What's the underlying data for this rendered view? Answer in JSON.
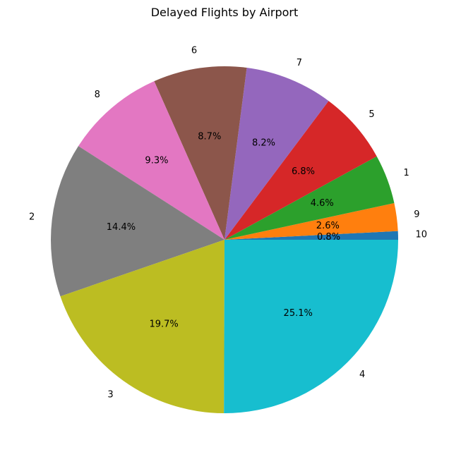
{
  "chart_data": {
    "type": "pie",
    "title": "Delayed Flights by Airport",
    "slices": [
      {
        "label": "10",
        "percent": 0.8,
        "value_label": "0.8%",
        "color": "#1f77b4"
      },
      {
        "label": "9",
        "percent": 2.6,
        "value_label": "2.6%",
        "color": "#ff7f0e"
      },
      {
        "label": "1",
        "percent": 4.6,
        "value_label": "4.6%",
        "color": "#2ca02c"
      },
      {
        "label": "5",
        "percent": 6.8,
        "value_label": "6.8%",
        "color": "#d62728"
      },
      {
        "label": "7",
        "percent": 8.2,
        "value_label": "8.2%",
        "color": "#9467bd"
      },
      {
        "label": "6",
        "percent": 8.7,
        "value_label": "8.7%",
        "color": "#8c564b"
      },
      {
        "label": "8",
        "percent": 9.3,
        "value_label": "9.3%",
        "color": "#e377c2"
      },
      {
        "label": "2",
        "percent": 14.4,
        "value_label": "14.4%",
        "color": "#7f7f7f"
      },
      {
        "label": "3",
        "percent": 19.7,
        "value_label": "19.7%",
        "color": "#bcbd22"
      },
      {
        "label": "4",
        "percent": 25.1,
        "value_label": "25.1%",
        "color": "#17becf"
      }
    ],
    "start_angle_deg": 0,
    "direction": "counterclockwise",
    "legend": "none"
  }
}
